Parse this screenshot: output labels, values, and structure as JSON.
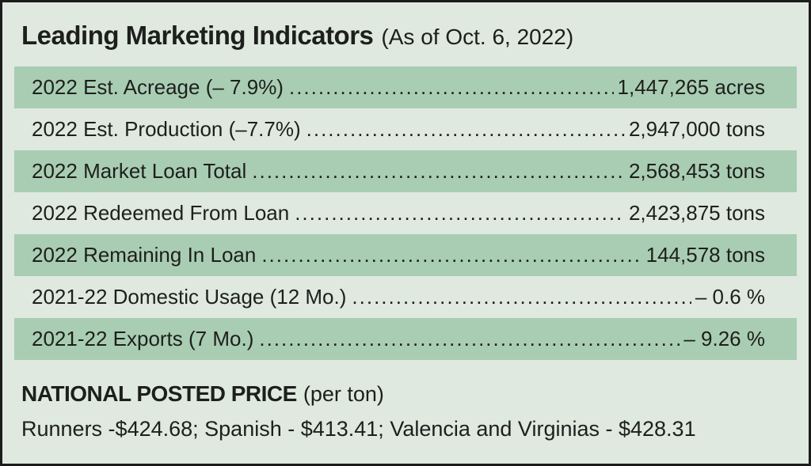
{
  "colors": {
    "background": "#dfe9e0",
    "band": "#a9cdb2",
    "border": "#1c1c1c",
    "text": "#1d1f1d"
  },
  "header": {
    "title": "Leading Marketing Indicators",
    "date_note": "(As of Oct. 6, 2022)"
  },
  "rows": [
    {
      "label": "2022 Est. Acreage (– 7.9%)",
      "value": "1,447,265 acres",
      "highlighted": true
    },
    {
      "label": "2022 Est. Production (–7.7%)",
      "value": "2,947,000 tons",
      "highlighted": false
    },
    {
      "label": "2022 Market Loan Total",
      "value": "2,568,453 tons",
      "highlighted": true
    },
    {
      "label": "2022 Redeemed From Loan",
      "value": "2,423,875 tons",
      "highlighted": false
    },
    {
      "label": "2022 Remaining In Loan",
      "value": "144,578 tons",
      "highlighted": true
    },
    {
      "label": "2021-22 Domestic Usage (12 Mo.)",
      "value": "– 0.6 %",
      "highlighted": false
    },
    {
      "label": "2021-22 Exports (7 Mo.)",
      "value": "– 9.26 %",
      "highlighted": true
    }
  ],
  "posted_price": {
    "heading": "NATIONAL POSTED PRICE",
    "heading_note": "(per ton)",
    "prices_line": "Runners -$424.68; Spanish - $413.41; Valencia and Virginias - $428.31"
  }
}
